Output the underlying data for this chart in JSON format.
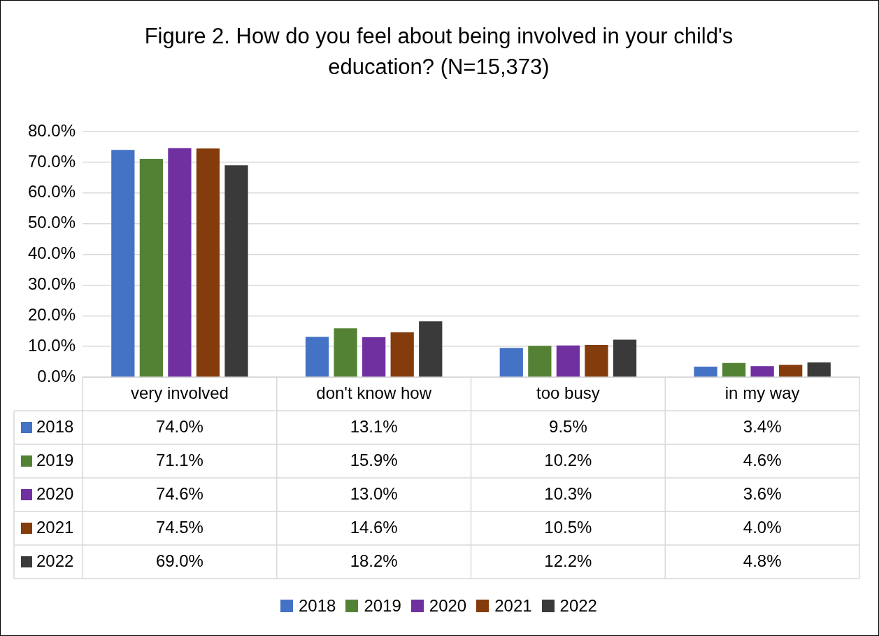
{
  "chart_data": {
    "type": "bar",
    "title": "Figure 2. How do you feel about being involved in your child's education? (N=15,373)",
    "categories": [
      "very involved",
      "don't know how",
      "too busy",
      "in my way"
    ],
    "series": [
      {
        "name": "2018",
        "color": "#4472c4",
        "values": [
          74.0,
          13.1,
          9.5,
          3.4
        ],
        "value_labels": [
          "74.0%",
          "13.1%",
          "9.5%",
          "3.4%"
        ]
      },
      {
        "name": "2019",
        "color": "#548235",
        "values": [
          71.1,
          15.9,
          10.2,
          4.6
        ],
        "value_labels": [
          "71.1%",
          "15.9%",
          "10.2%",
          "4.6%"
        ]
      },
      {
        "name": "2020",
        "color": "#7030a0",
        "values": [
          74.6,
          13.0,
          10.3,
          3.6
        ],
        "value_labels": [
          "74.6%",
          "13.0%",
          "10.3%",
          "3.6%"
        ]
      },
      {
        "name": "2021",
        "color": "#843c0c",
        "values": [
          74.5,
          14.6,
          10.5,
          4.0
        ],
        "value_labels": [
          "74.5%",
          "14.6%",
          "10.5%",
          "4.0%"
        ]
      },
      {
        "name": "2022",
        "color": "#3a3a3a",
        "values": [
          69.0,
          18.2,
          12.2,
          4.8
        ],
        "value_labels": [
          "69.0%",
          "18.2%",
          "12.2%",
          "4.8%"
        ]
      }
    ],
    "ylim": [
      0,
      80
    ],
    "yticks": [
      {
        "value": 0,
        "label": "0.0%"
      },
      {
        "value": 10,
        "label": "10.0%"
      },
      {
        "value": 20,
        "label": "20.0%"
      },
      {
        "value": 30,
        "label": "30.0%"
      },
      {
        "value": 40,
        "label": "40.0%"
      },
      {
        "value": 50,
        "label": "50.0%"
      },
      {
        "value": 60,
        "label": "60.0%"
      },
      {
        "value": 70,
        "label": "70.0%"
      },
      {
        "value": 80,
        "label": "80.0%"
      }
    ],
    "grid": "y",
    "legend": "bottom"
  }
}
